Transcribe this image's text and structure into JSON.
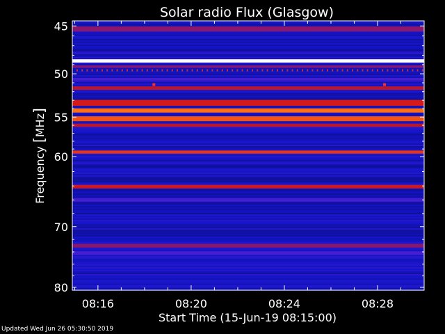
{
  "chart_data": {
    "type": "heatmap",
    "title": "Solar radio Flux (Glasgow)",
    "xlabel": "Start Time (15-Jun-19 08:15:00)",
    "ylabel_prefix": "Frequency ",
    "ylabel_unit": "MHz",
    "x_ticks": [
      "08:16",
      "08:20",
      "08:24",
      "08:28"
    ],
    "x_tick_minutes": [
      16,
      20,
      24,
      28
    ],
    "xlim_minutes": [
      14.9,
      30.0
    ],
    "y_ticks": [
      45,
      50,
      55,
      60,
      70,
      80
    ],
    "ylim": [
      44.5,
      80.5
    ],
    "y_scale": "log",
    "colors": {
      "background": "#000000",
      "low": "#0a0ad0",
      "mid": "#c81818",
      "high": "#ffcc00",
      "peak": "#ffffff"
    },
    "bands": [
      {
        "freq": 45.3,
        "width": 0.5,
        "level": 0.45
      },
      {
        "freq": 48.6,
        "width": 0.35,
        "level": 1.0
      },
      {
        "freq": 49.2,
        "width": 0.25,
        "level": 0.45
      },
      {
        "freq": 50.6,
        "width": 0.3,
        "level": 0.35
      },
      {
        "freq": 51.6,
        "width": 0.4,
        "level": 0.55
      },
      {
        "freq": 53.3,
        "width": 0.7,
        "level": 0.65
      },
      {
        "freq": 54.2,
        "width": 0.5,
        "level": 0.8
      },
      {
        "freq": 55.2,
        "width": 0.6,
        "level": 0.75
      },
      {
        "freq": 56.0,
        "width": 0.4,
        "level": 0.55
      },
      {
        "freq": 59.4,
        "width": 0.4,
        "level": 0.7
      },
      {
        "freq": 64.1,
        "width": 0.5,
        "level": 0.62
      },
      {
        "freq": 66.0,
        "width": 0.5,
        "level": 0.35
      },
      {
        "freq": 73.0,
        "width": 0.6,
        "level": 0.45
      },
      {
        "freq": 74.2,
        "width": 0.6,
        "level": 0.35
      }
    ],
    "spots": [
      {
        "minute": 18.4,
        "freq": 51.2
      },
      {
        "minute": 28.3,
        "freq": 51.2
      }
    ]
  },
  "footer": "Updated Wed Jun 26 05:30:50 2019"
}
